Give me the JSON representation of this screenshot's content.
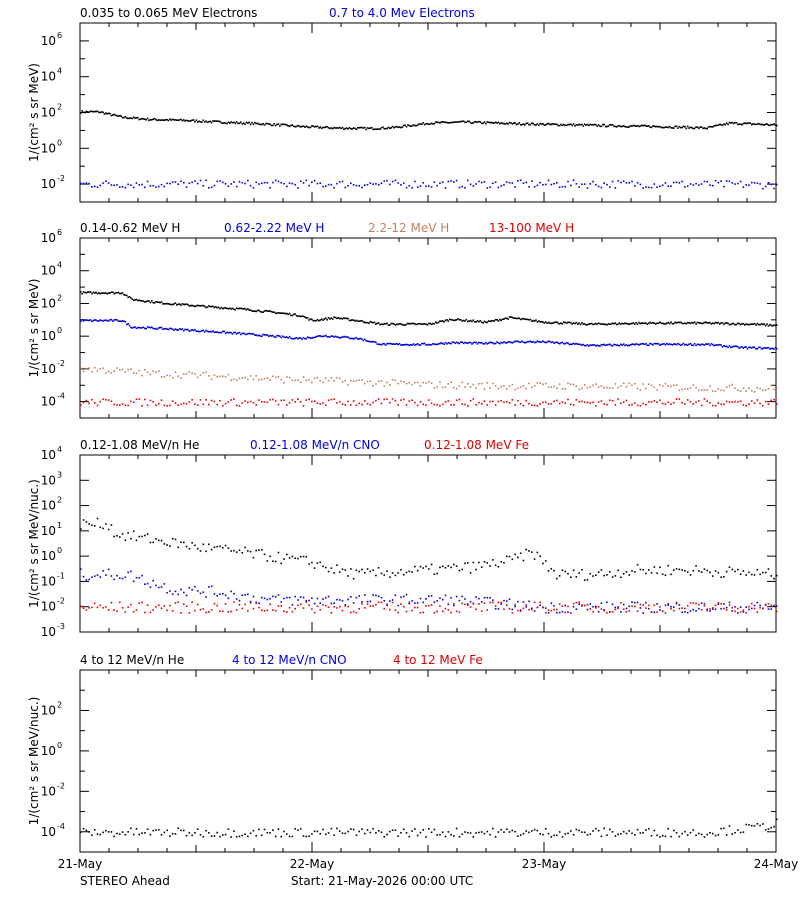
{
  "colors": {
    "black": "#000000",
    "blue": "#0000dd",
    "tan": "#c08060",
    "red": "#e00000"
  },
  "footer": {
    "spacecraft": "STEREO Ahead",
    "start": "Start: 21-May-2026 00:00 UTC"
  },
  "x_axis": {
    "ticks": [
      {
        "label": "21-May",
        "day": 0
      },
      {
        "label": "22-May",
        "day": 1
      },
      {
        "label": "23-May",
        "day": 2
      },
      {
        "label": "24-May",
        "day": 3
      }
    ],
    "range_days": [
      0,
      3
    ]
  },
  "chart_data": [
    {
      "type": "scatter",
      "ylog": true,
      "ylim_exp": [
        -3,
        7
      ],
      "ytick_exps": [
        -2,
        0,
        2,
        4,
        6
      ],
      "ylabel": "1/(cm² s sr MeV)",
      "series": [
        {
          "name": "0.035 to 0.065 MeV Electrons",
          "color": "black",
          "style": "line",
          "x": [
            0,
            0.08,
            0.12,
            0.18,
            0.3,
            0.45,
            0.6,
            0.8,
            0.95,
            1.1,
            1.25,
            1.35,
            1.5,
            1.65,
            1.8,
            2.0,
            2.15,
            2.3,
            2.5,
            2.7,
            2.8,
            2.9,
            3.0
          ],
          "y": [
            120,
            120,
            90,
            60,
            45,
            40,
            32,
            25,
            18,
            15,
            14,
            16,
            28,
            32,
            28,
            24,
            22,
            20,
            18,
            15,
            28,
            25,
            22
          ]
        },
        {
          "name": "0.7 to 4.0 Mev Electrons",
          "color": "blue",
          "style": "scatter",
          "x": [
            0,
            0.5,
            1.0,
            1.5,
            2.0,
            2.5,
            3.0
          ],
          "y": [
            0.011,
            0.011,
            0.011,
            0.011,
            0.011,
            0.011,
            0.01
          ]
        }
      ]
    },
    {
      "type": "scatter",
      "ylog": true,
      "ylim_exp": [
        -5,
        6
      ],
      "ytick_exps": [
        -4,
        -2,
        0,
        2,
        4,
        6
      ],
      "ylabel": "1/(cm² s sr MeV)",
      "series": [
        {
          "name": "0.14-0.62 MeV H",
          "color": "black",
          "style": "line",
          "x": [
            0,
            0.18,
            0.22,
            0.35,
            0.55,
            0.7,
            0.85,
            0.95,
            1.0,
            1.1,
            1.3,
            1.5,
            1.6,
            1.75,
            1.85,
            2.0,
            2.2,
            2.45,
            2.7,
            2.9,
            3.0
          ],
          "y": [
            500,
            500,
            200,
            120,
            70,
            50,
            30,
            20,
            10,
            15,
            6,
            6,
            12,
            8,
            15,
            8,
            6,
            7,
            7,
            6,
            5
          ]
        },
        {
          "name": "0.62-2.22 MeV H",
          "color": "blue",
          "style": "line",
          "x": [
            0,
            0.18,
            0.22,
            0.4,
            0.6,
            0.8,
            0.95,
            1.05,
            1.2,
            1.3,
            1.5,
            1.6,
            1.75,
            1.85,
            2.0,
            2.2,
            2.45,
            2.7,
            2.85,
            3.0
          ],
          "y": [
            10,
            10,
            4,
            3,
            2,
            1.2,
            0.8,
            1.2,
            0.8,
            0.35,
            0.35,
            0.45,
            0.4,
            0.5,
            0.5,
            0.3,
            0.35,
            0.35,
            0.22,
            0.2
          ]
        },
        {
          "name": "2.2-12 MeV H",
          "color": "tan",
          "style": "scatter",
          "x": [
            0,
            0.3,
            0.6,
            0.9,
            1.2,
            1.5,
            1.8,
            2.1,
            2.4,
            2.7,
            3.0
          ],
          "y": [
            0.012,
            0.006,
            0.004,
            0.0025,
            0.0018,
            0.0012,
            0.001,
            0.001,
            0.0009,
            0.0008,
            0.0007
          ]
        },
        {
          "name": "13-100 MeV H",
          "color": "red",
          "style": "scatter",
          "x": [
            0,
            1.5,
            3.0
          ],
          "y": [
            0.0001,
            0.0001,
            0.0001
          ]
        }
      ]
    },
    {
      "type": "scatter",
      "ylog": true,
      "ylim_exp": [
        -3,
        4
      ],
      "ytick_exps": [
        -3,
        -2,
        -1,
        0,
        1,
        2,
        3,
        4
      ],
      "ylabel": "1/(cm² s sr MeV/nuc.)",
      "series": [
        {
          "name": "0.12-1.08 MeV/n He",
          "color": "black",
          "style": "scatter",
          "x": [
            0,
            0.12,
            0.15,
            0.3,
            0.5,
            0.7,
            0.9,
            1.0,
            1.1,
            1.2,
            1.35,
            1.5,
            1.7,
            1.85,
            1.95,
            2.05,
            2.2,
            2.4,
            2.6,
            2.8,
            3.0
          ],
          "y": [
            20,
            20,
            8,
            5,
            2.5,
            1.5,
            0.8,
            0.6,
            0.3,
            0.2,
            0.25,
            0.3,
            0.4,
            0.7,
            1.5,
            0.2,
            0.2,
            0.3,
            0.3,
            0.25,
            0.2
          ]
        },
        {
          "name": "0.12-1.08 MeV/n CNO",
          "color": "blue",
          "style": "scatter",
          "x": [
            0,
            0.2,
            0.4,
            0.6,
            0.8,
            1.2,
            1.6,
            2.0,
            2.4,
            2.8,
            3.0
          ],
          "y": [
            0.2,
            0.2,
            0.05,
            0.04,
            0.02,
            0.02,
            0.02,
            0.01,
            0.01,
            0.01,
            0.01
          ]
        },
        {
          "name": "0.12-1.08 MeV Fe",
          "color": "red",
          "style": "scatter",
          "x": [
            0,
            1.0,
            1.3,
            3.0
          ],
          "y": [
            0.01,
            0.01,
            0.01,
            0.01
          ]
        }
      ]
    },
    {
      "type": "scatter",
      "ylog": true,
      "ylim_exp": [
        -5,
        4
      ],
      "ytick_exps": [
        -4,
        -2,
        0,
        2
      ],
      "ylabel": "1/(cm² s sr MeV/nuc.)",
      "series": [
        {
          "name": "4 to 12 MeV/n He",
          "color": "black",
          "style": "scatter",
          "x": [
            0,
            0.3,
            0.5,
            0.7,
            1.0,
            1.2,
            1.5,
            1.9,
            2.1,
            2.4,
            2.7,
            2.95,
            3.0
          ],
          "y": [
            0.0001,
            0.0001,
            0.0001,
            0.0001,
            0.0001,
            0.0001,
            0.0001,
            0.0001,
            0.0001,
            0.0001,
            0.0001,
            0.0002,
            0.0003
          ]
        },
        {
          "name": "4 to 12 MeV/n CNO",
          "color": "blue",
          "style": "scatter",
          "x": [],
          "y": []
        },
        {
          "name": "4 to 12 MeV Fe",
          "color": "red",
          "style": "scatter",
          "x": [],
          "y": []
        }
      ]
    }
  ]
}
